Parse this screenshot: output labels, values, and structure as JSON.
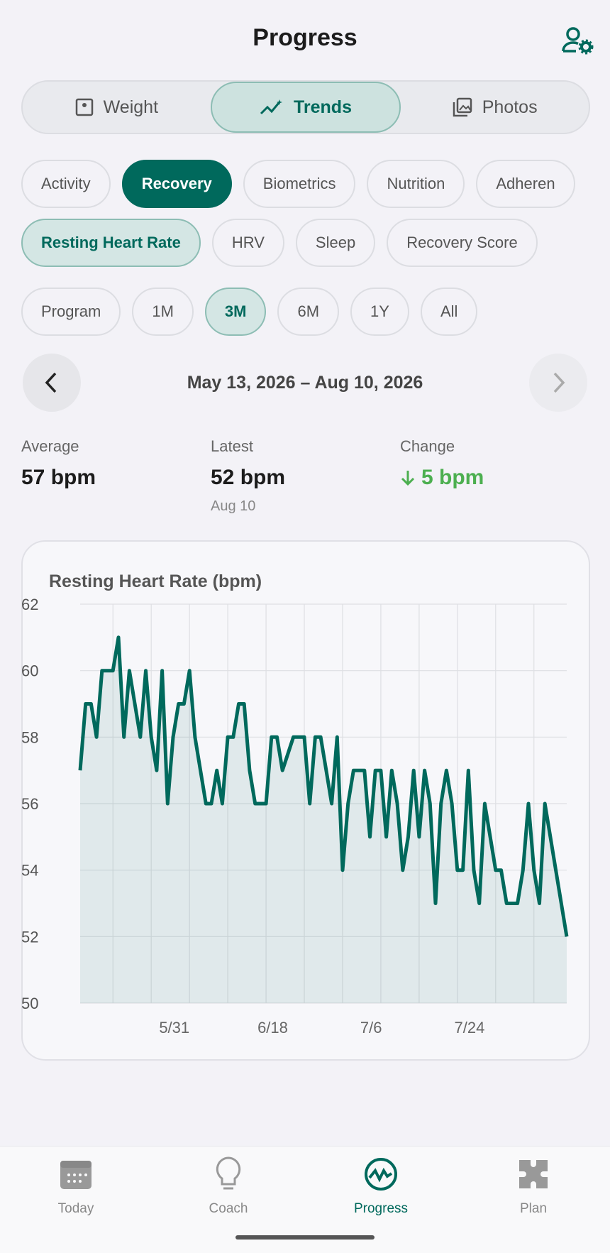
{
  "header": {
    "title": "Progress"
  },
  "tabs": {
    "items": [
      "Weight",
      "Trends",
      "Photos"
    ],
    "selected": 1
  },
  "filters": {
    "items": [
      "Activity",
      "Recovery",
      "Biometrics",
      "Nutrition",
      "Adheren"
    ],
    "selected": 1
  },
  "metrics": {
    "items": [
      "Resting Heart Rate",
      "HRV",
      "Sleep",
      "Recovery Score"
    ],
    "selected": 0
  },
  "ranges": {
    "items": [
      "Program",
      "1M",
      "3M",
      "6M",
      "1Y",
      "All"
    ],
    "selected": 2
  },
  "date_range": "May 13, 2026 – Aug 10, 2026",
  "stats": [
    {
      "label": "Average",
      "value": "57 bpm"
    },
    {
      "label": "Latest",
      "value": "52 bpm",
      "note": "Aug 10"
    },
    {
      "label": "Change",
      "value": "5 bpm"
    }
  ],
  "chart_data": {
    "type": "line",
    "title": "Resting Heart Rate (bpm)",
    "color": "#00695c",
    "area": true,
    "grid": true,
    "categories": [
      "5/13",
      "5/14",
      "5/15",
      "5/16",
      "5/17",
      "5/18",
      "5/19",
      "5/20",
      "5/21",
      "5/22",
      "5/23",
      "5/24",
      "5/25",
      "5/26",
      "5/27",
      "5/28",
      "5/29",
      "5/30",
      "5/31",
      "6/1",
      "6/2",
      "6/3",
      "6/4",
      "6/5",
      "6/6",
      "6/7",
      "6/8",
      "6/9",
      "6/10",
      "6/11",
      "6/12",
      "6/13",
      "6/14",
      "6/15",
      "6/16",
      "6/17",
      "6/18",
      "6/19",
      "6/20",
      "6/21",
      "6/22",
      "6/23",
      "6/24",
      "6/25",
      "6/26",
      "6/27",
      "6/28",
      "6/29",
      "6/30",
      "7/1",
      "7/2",
      "7/3",
      "7/4",
      "7/5",
      "7/6",
      "7/7",
      "7/8",
      "7/9",
      "7/10",
      "7/11",
      "7/12",
      "7/13",
      "7/14",
      "7/15",
      "7/16",
      "7/17",
      "7/18",
      "7/19",
      "7/20",
      "7/21",
      "7/22",
      "7/23",
      "7/24",
      "7/25",
      "7/26",
      "7/27",
      "7/28",
      "7/29",
      "7/30",
      "7/31",
      "8/1",
      "8/2",
      "8/3",
      "8/4",
      "8/5",
      "8/6",
      "8/7",
      "8/8",
      "8/9",
      "8/10"
    ],
    "values": [
      57,
      59,
      59,
      58,
      60,
      60,
      60,
      61,
      58,
      60,
      59,
      58,
      60,
      58,
      57,
      60,
      56,
      58,
      59,
      59,
      60,
      58,
      57,
      56,
      56,
      57,
      56,
      58,
      58,
      59,
      59,
      57,
      56,
      56,
      56,
      58,
      58,
      57,
      57.5,
      58,
      58,
      58,
      56,
      58,
      58,
      57,
      56,
      58,
      54,
      56,
      57,
      57,
      57,
      55,
      57,
      57,
      55,
      57,
      56,
      54,
      55,
      57,
      55,
      57,
      56,
      53,
      56,
      57,
      56,
      54,
      54,
      57,
      54,
      53,
      56,
      55,
      54,
      54,
      53,
      53,
      53,
      54,
      56,
      54,
      53,
      56,
      55,
      54,
      53,
      52
    ],
    "xticks": [
      "5/31",
      "6/18",
      "7/6",
      "7/24"
    ],
    "ylim": [
      50,
      62
    ],
    "yticks": [
      50,
      52,
      54,
      56,
      58,
      60,
      62
    ]
  },
  "nav": {
    "items": [
      "Today",
      "Coach",
      "Progress",
      "Plan"
    ],
    "selected": 2
  }
}
